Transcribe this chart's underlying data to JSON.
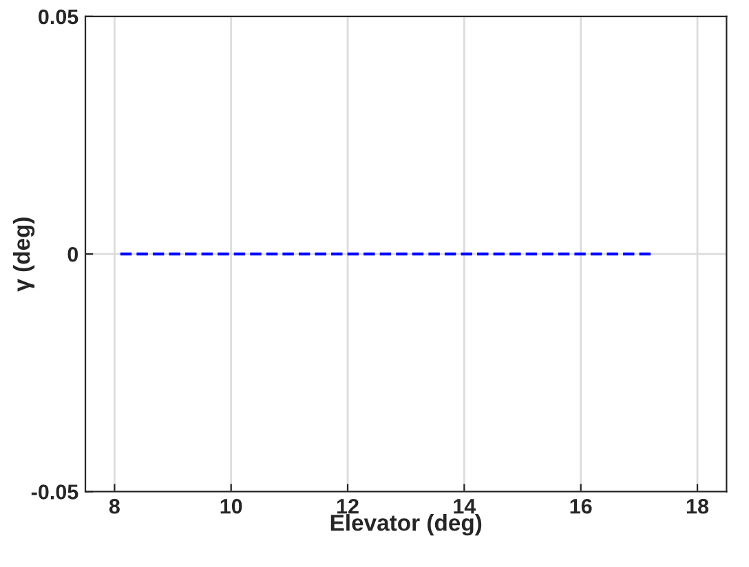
{
  "chart_data": {
    "type": "line",
    "xlabel": "Elevator (deg)",
    "ylabel": "γ (deg)",
    "x": [
      8.1,
      17.2
    ],
    "series": [
      {
        "color": "#0000ff",
        "values": [
          0,
          0
        ]
      }
    ],
    "xlim": [
      7.5,
      18.5
    ],
    "ylim": [
      -0.05,
      0.05
    ],
    "xticks": [
      8,
      10,
      12,
      14,
      16,
      18
    ],
    "yticks": [
      0.05,
      0,
      -0.05
    ],
    "grid": true,
    "line_style": "dashed",
    "marker": "none"
  }
}
